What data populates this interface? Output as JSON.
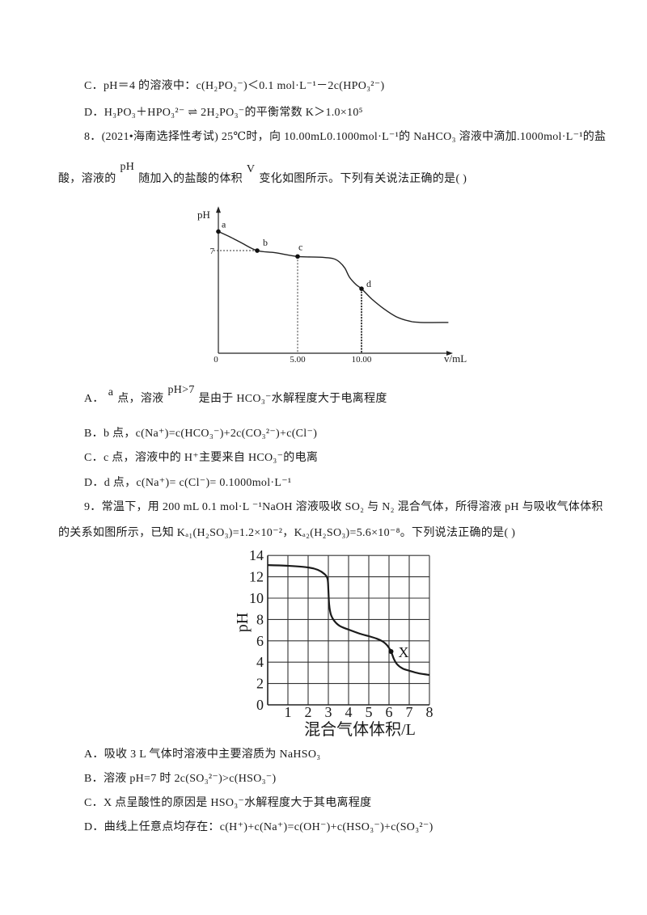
{
  "q7": {
    "option_c": "C．pH＝4 的溶液中：c(H₂PO₂⁻)＜0.1 mol·L⁻¹－2c(HPO₃²⁻)",
    "option_d": "D．H₃PO₃＋HPO₃²⁻ ⇌ 2H₂PO₃⁻的平衡常数 K＞1.0×10⁵"
  },
  "q8": {
    "stem_line1": "8．(2021•海南选择性考试) 25℃时，向 10.00mL0.1000mol·L⁻¹的 NaHCO₃ 溶液中滴加.1000mol·L⁻¹的盐",
    "stem_line2": {
      "part1": "酸，溶液的",
      "ph": "pH",
      "part2": "随加入的盐酸的体积",
      "v": "V",
      "part3": "变化如图所示。下列有关说法正确的是(     )"
    },
    "option_a": {
      "prefix": "A．",
      "point": "a",
      "part1": "点，溶液",
      "ph": "pH>7",
      "part2": "是由于 HCO₃⁻水解程度大于电离程度"
    },
    "option_b": "B．b 点，c(Na⁺)=c(HCO₃⁻)+2c(CO₃²⁻)+c(Cl⁻)",
    "option_c": "C．c 点，溶液中的 H⁺主要来自 HCO₃⁻的电离",
    "option_d": "D．d 点，c(Na⁺)= c(Cl⁻)= 0.1000mol·L⁻¹"
  },
  "q9": {
    "stem_line1": "9．常温下，用 200 mL 0.1 mol·L ⁻¹NaOH 溶液吸收 SO₂ 与 N₂ 混合气体，所得溶液 pH 与吸收气体体积",
    "stem_line2": "的关系如图所示，已知 Kₐ₁(H₂SO₃)=1.2×10⁻²，Kₐ₂(H₂SO₃)=5.6×10⁻⁸。下列说法正确的是(     )",
    "option_a": "A．吸收 3 L 气体时溶液中主要溶质为 NaHSO₃",
    "option_b": "B．溶液 pH=7 时 2c(SO₃²⁻)>c(HSO₃⁻)",
    "option_c": "C．X 点呈酸性的原因是 HSO₃⁻水解程度大于其电离程度",
    "option_d": "D．曲线上任意点均存在：c(H⁺)+c(Na⁺)=c(OH⁻)+c(HSO₃⁻)+c(SO₃²⁻)"
  },
  "chart_data": [
    {
      "type": "line",
      "xlabel": "v/mL",
      "ylabel": "pH",
      "xlim": [
        0,
        16.9
      ],
      "ylim": [
        0,
        9.8
      ],
      "grid": false,
      "x_ticks": [
        {
          "value": 0,
          "label": "0"
        },
        {
          "value": 5,
          "label": "5.00"
        },
        {
          "value": 10,
          "label": "10.00"
        }
      ],
      "y_ticks": [
        {
          "value": 7,
          "label": "7"
        }
      ],
      "series": [
        {
          "x": [
            0,
            0.8,
            1.5,
            2.45,
            3.6,
            5.0,
            6.7,
            7.8,
            8.3,
            8.7,
            9.05,
            9.55,
            10.0,
            10.8,
            11.8,
            12.7,
            13.7,
            14.6,
            16.8
          ],
          "values": [
            8.3,
            7.9,
            7.5,
            7.0,
            6.85,
            6.6,
            6.55,
            6.45,
            6.2,
            5.8,
            5.2,
            4.7,
            4.4,
            3.7,
            3.0,
            2.5,
            2.2,
            2.1,
            2.1
          ]
        }
      ],
      "points": [
        {
          "label": "a",
          "x": 0,
          "y": 8.3
        },
        {
          "label": "b",
          "x": 2.45,
          "y": 7.0
        },
        {
          "label": "c",
          "x": 5.0,
          "y": 6.6
        },
        {
          "label": "d",
          "x": 10.0,
          "y": 4.4
        }
      ]
    },
    {
      "type": "line",
      "xlabel": "混合气体体积/L",
      "ylabel": "pH",
      "xlim": [
        0,
        8
      ],
      "ylim": [
        0,
        14
      ],
      "grid": true,
      "x_ticks": [
        1,
        2,
        3,
        4,
        5,
        6,
        7,
        8
      ],
      "y_ticks": [
        0,
        2,
        4,
        6,
        8,
        10,
        12,
        14
      ],
      "series": [
        {
          "x": [
            0,
            1,
            2,
            2.48,
            2.8,
            2.96,
            3.0,
            3.04,
            3.12,
            3.28,
            3.56,
            4.0,
            4.56,
            5.0,
            5.4,
            5.72,
            5.92,
            6.1,
            6.24,
            6.4,
            6.68,
            7.0,
            7.48,
            8.0
          ],
          "values": [
            13.1,
            13.03,
            12.88,
            12.65,
            12.27,
            11.8,
            10.8,
            9.4,
            8.5,
            7.9,
            7.4,
            7.05,
            6.67,
            6.44,
            6.2,
            5.9,
            5.55,
            5.0,
            4.3,
            3.8,
            3.4,
            3.2,
            2.95,
            2.8
          ]
        }
      ],
      "points": [
        {
          "label": "X",
          "x": 6.1,
          "y": 5.0
        }
      ]
    }
  ]
}
